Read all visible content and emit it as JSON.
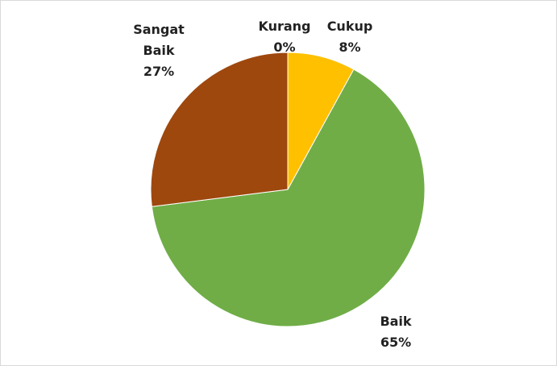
{
  "chart_data": {
    "type": "pie",
    "categories": [
      "Kurang",
      "Cukup",
      "Baik",
      "Sangat Baik"
    ],
    "values": [
      0,
      8,
      65,
      27
    ],
    "value_labels": [
      "0%",
      "8%",
      "65%",
      "27%"
    ],
    "colors": [
      "#4472c4",
      "#ffc000",
      "#70ad47",
      "#9e480e"
    ]
  }
}
